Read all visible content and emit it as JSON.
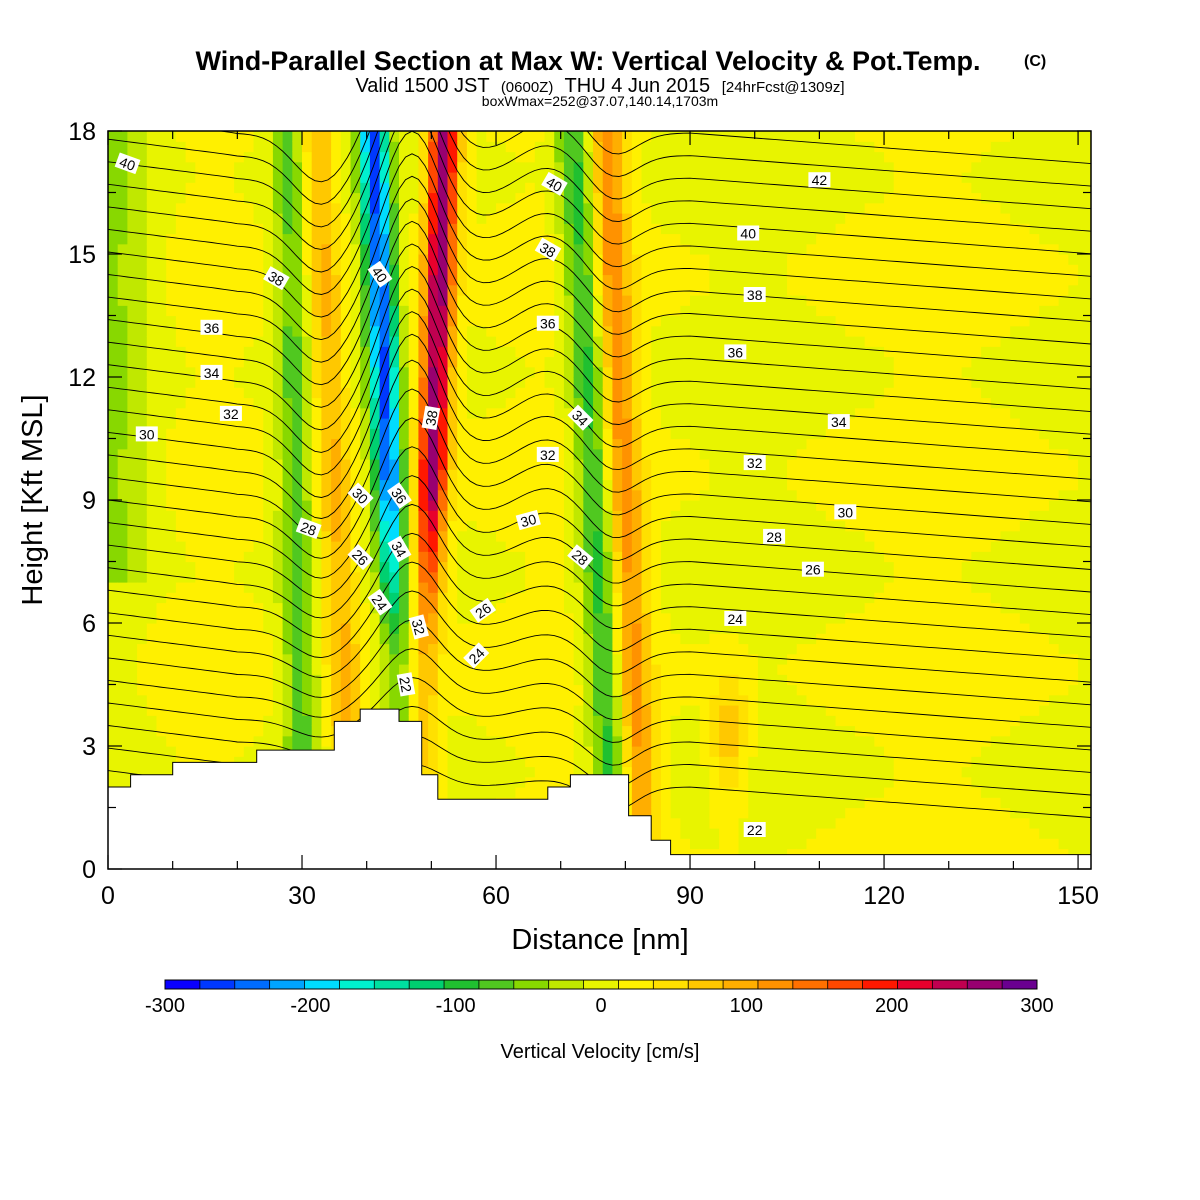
{
  "title": {
    "main": "Wind-Parallel Section at Max W: Vertical Velocity & Pot.Temp.",
    "mark": "(C)",
    "valid_pre": "Valid 1500 JST",
    "valid_z": "(0600Z)",
    "valid_date": "THU 4 Jun 2015",
    "valid_fcst": "[24hrFcst@1309z]",
    "box": "boxWmax=252@37.07,140.14,1703m"
  },
  "chart_data": {
    "type": "heatmap",
    "title": "Wind-Parallel Section at Max W: Vertical Velocity & Pot.Temp.",
    "xlabel": "Distance [nm]",
    "ylabel": "Height [Kft MSL]",
    "xlim": [
      0,
      152
    ],
    "ylim": [
      0,
      18
    ],
    "xticks": [
      0,
      30,
      60,
      90,
      120,
      150
    ],
    "yticks": [
      0,
      3,
      6,
      9,
      12,
      15,
      18
    ],
    "colorbar": {
      "label": "Vertical Velocity [cm/s]",
      "range": [
        -300,
        300
      ],
      "ticks": [
        -300,
        -200,
        -100,
        0,
        100,
        200,
        300
      ],
      "colors": [
        "#0a00ff",
        "#0038ff",
        "#006cff",
        "#00a4ff",
        "#00dcff",
        "#00f0d0",
        "#00e0a0",
        "#00d070",
        "#20c030",
        "#50c820",
        "#88d800",
        "#c0e800",
        "#e8f400",
        "#fff000",
        "#ffe000",
        "#ffc800",
        "#ffae00",
        "#ff9200",
        "#ff7000",
        "#ff4800",
        "#ff1800",
        "#e8002c",
        "#c00050",
        "#980070",
        "#6a0090"
      ]
    },
    "w_features": [
      {
        "name": "main-updraft",
        "x_bottom": 48.5,
        "x_top": 52,
        "w": 260
      },
      {
        "name": "main-downdraft",
        "x_bottom": 45.5,
        "x_top": 41,
        "w": -260
      },
      {
        "name": "updraft-left",
        "x_bottom": 37.5,
        "x_top": 32,
        "w": 80
      },
      {
        "name": "downdraft-left",
        "x_bottom": 30,
        "x_top": 28,
        "w": -80
      },
      {
        "name": "downdraft-right",
        "x_bottom": 78,
        "x_top": 72,
        "w": -110
      },
      {
        "name": "updraft-right",
        "x_bottom": 82,
        "x_top": 77,
        "w": 110
      },
      {
        "name": "updraft-low-right",
        "x_bottom": 96,
        "x_top": 96,
        "w": 70
      }
    ],
    "terrain": [
      [
        0,
        2
      ],
      [
        3.5,
        2
      ],
      [
        3.5,
        2.3
      ],
      [
        10,
        2.3
      ],
      [
        10,
        2.6
      ],
      [
        23,
        2.6
      ],
      [
        23,
        2.9
      ],
      [
        35,
        2.9
      ],
      [
        35,
        3.6
      ],
      [
        39,
        3.6
      ],
      [
        39,
        3.9
      ],
      [
        45,
        3.9
      ],
      [
        45,
        3.6
      ],
      [
        48.5,
        3.6
      ],
      [
        48.5,
        2.3
      ],
      [
        51,
        2.3
      ],
      [
        51,
        1.7
      ],
      [
        68,
        1.7
      ],
      [
        68,
        2
      ],
      [
        71.5,
        2
      ],
      [
        71.5,
        2.3
      ],
      [
        80.5,
        2.3
      ],
      [
        80.5,
        1.3
      ],
      [
        84,
        1.3
      ],
      [
        84,
        0.7
      ],
      [
        87,
        0.7
      ],
      [
        87,
        0.35
      ],
      [
        152,
        0.35
      ]
    ],
    "contour_labels": [
      {
        "x": 3,
        "y": 17.2,
        "text": "40",
        "rot": 20
      },
      {
        "x": 26,
        "y": 14.4,
        "text": "38",
        "rot": 30
      },
      {
        "x": 16,
        "y": 13.2,
        "text": "36",
        "rot": 0
      },
      {
        "x": 16,
        "y": 12.1,
        "text": "34",
        "rot": 0
      },
      {
        "x": 19,
        "y": 11.1,
        "text": "32",
        "rot": 0
      },
      {
        "x": 6,
        "y": 10.6,
        "text": "30",
        "rot": 0
      },
      {
        "x": 31,
        "y": 8.3,
        "text": "28",
        "rot": 20
      },
      {
        "x": 39,
        "y": 9.1,
        "text": "30",
        "rot": 45
      },
      {
        "x": 39,
        "y": 7.6,
        "text": "26",
        "rot": 45
      },
      {
        "x": 42,
        "y": 6.5,
        "text": "24",
        "rot": 55
      },
      {
        "x": 45,
        "y": 9.1,
        "text": "36",
        "rot": 55
      },
      {
        "x": 45,
        "y": 7.8,
        "text": "34",
        "rot": 60
      },
      {
        "x": 48,
        "y": 5.9,
        "text": "32",
        "rot": 75
      },
      {
        "x": 46,
        "y": 4.5,
        "text": "22",
        "rot": 80
      },
      {
        "x": 42,
        "y": 14.5,
        "text": "40",
        "rot": 55
      },
      {
        "x": 50,
        "y": 11.0,
        "text": "38",
        "rot": -80
      },
      {
        "x": 69,
        "y": 16.7,
        "text": "40",
        "rot": 30
      },
      {
        "x": 68,
        "y": 15.1,
        "text": "38",
        "rot": 30
      },
      {
        "x": 68,
        "y": 13.3,
        "text": "36",
        "rot": 0
      },
      {
        "x": 73,
        "y": 11.0,
        "text": "34",
        "rot": 45
      },
      {
        "x": 68,
        "y": 10.1,
        "text": "32",
        "rot": 0
      },
      {
        "x": 65,
        "y": 8.5,
        "text": "30",
        "rot": -15
      },
      {
        "x": 73,
        "y": 7.6,
        "text": "28",
        "rot": 40
      },
      {
        "x": 58,
        "y": 6.3,
        "text": "26",
        "rot": -35
      },
      {
        "x": 57,
        "y": 5.2,
        "text": "24",
        "rot": -45
      },
      {
        "x": 110,
        "y": 16.8,
        "text": "42",
        "rot": 0
      },
      {
        "x": 99,
        "y": 15.5,
        "text": "40",
        "rot": 0
      },
      {
        "x": 100,
        "y": 14.0,
        "text": "38",
        "rot": 0
      },
      {
        "x": 97,
        "y": 12.6,
        "text": "36",
        "rot": 0
      },
      {
        "x": 113,
        "y": 10.9,
        "text": "34",
        "rot": 0
      },
      {
        "x": 100,
        "y": 9.9,
        "text": "32",
        "rot": 0
      },
      {
        "x": 114,
        "y": 8.7,
        "text": "30",
        "rot": 0
      },
      {
        "x": 103,
        "y": 8.1,
        "text": "28",
        "rot": 0
      },
      {
        "x": 109,
        "y": 7.3,
        "text": "26",
        "rot": 0
      },
      {
        "x": 97,
        "y": 6.1,
        "text": "24",
        "rot": 0
      },
      {
        "x": 100,
        "y": 0.95,
        "text": "22",
        "rot": 0
      }
    ]
  }
}
